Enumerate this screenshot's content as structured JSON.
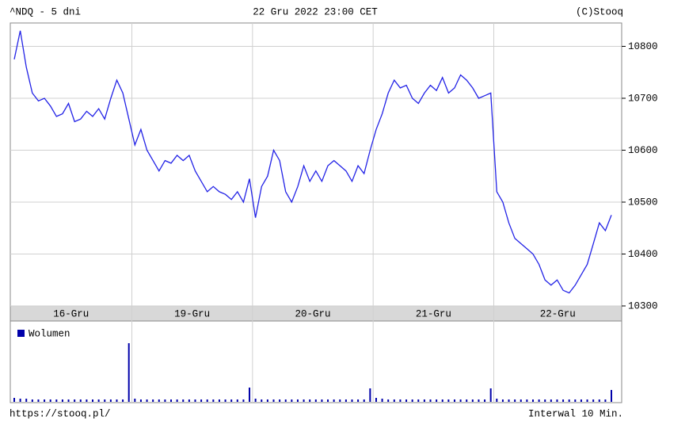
{
  "chart_data": {
    "type": "line",
    "title": "^NDQ - 5 dni",
    "subtitle": "22 Gru 2022 23:00 CET",
    "source": "(C)Stooq",
    "footer_left": "https://stooq.pl/",
    "footer_right": "Interwal 10 Min.",
    "days": [
      "16-Gru",
      "19-Gru",
      "20-Gru",
      "21-Gru",
      "22-Gru"
    ],
    "color": "#2222e6",
    "values": [
      10775,
      10830,
      10760,
      10710,
      10695,
      10700,
      10685,
      10665,
      10670,
      10690,
      10655,
      10660,
      10675,
      10665,
      10680,
      10660,
      10700,
      10735,
      10710,
      10660,
      10610,
      10640,
      10600,
      10580,
      10560,
      10580,
      10575,
      10590,
      10580,
      10590,
      10560,
      10540,
      10520,
      10530,
      10520,
      10515,
      10505,
      10520,
      10500,
      10545,
      10470,
      10530,
      10550,
      10600,
      10580,
      10520,
      10500,
      10530,
      10570,
      10540,
      10560,
      10540,
      10570,
      10580,
      10570,
      10560,
      10540,
      10570,
      10555,
      10600,
      10640,
      10670,
      10710,
      10735,
      10720,
      10725,
      10700,
      10690,
      10710,
      10725,
      10715,
      10740,
      10710,
      10720,
      10745,
      10735,
      10720,
      10700,
      10705,
      10710,
      10520,
      10500,
      10460,
      10430,
      10420,
      10410,
      10400,
      10380,
      10350,
      10340,
      10350,
      10330,
      10325,
      10340,
      10360,
      10380,
      10420,
      10460,
      10445,
      10475
    ],
    "ylim": [
      10300,
      10845
    ],
    "yticks": [
      10300,
      10400,
      10500,
      10600,
      10700,
      10800
    ],
    "grid": true,
    "volume": {
      "name": "Wolumen",
      "color": "#0000aa",
      "ylim": [
        0,
        100
      ],
      "values": [
        5,
        4,
        4,
        3,
        3,
        3,
        3,
        3,
        3,
        3,
        3,
        3,
        3,
        3,
        3,
        3,
        3,
        3,
        3,
        74,
        4,
        3,
        3,
        3,
        3,
        3,
        3,
        3,
        3,
        3,
        3,
        3,
        3,
        3,
        3,
        3,
        3,
        3,
        3,
        18,
        4,
        3,
        3,
        3,
        3,
        3,
        3,
        3,
        3,
        3,
        3,
        3,
        3,
        3,
        3,
        3,
        3,
        3,
        3,
        17,
        5,
        4,
        3,
        3,
        3,
        3,
        3,
        3,
        3,
        3,
        3,
        3,
        3,
        3,
        3,
        3,
        3,
        3,
        3,
        17,
        4,
        3,
        3,
        3,
        3,
        3,
        3,
        3,
        3,
        3,
        3,
        3,
        3,
        3,
        3,
        3,
        3,
        3,
        3,
        15
      ]
    }
  }
}
